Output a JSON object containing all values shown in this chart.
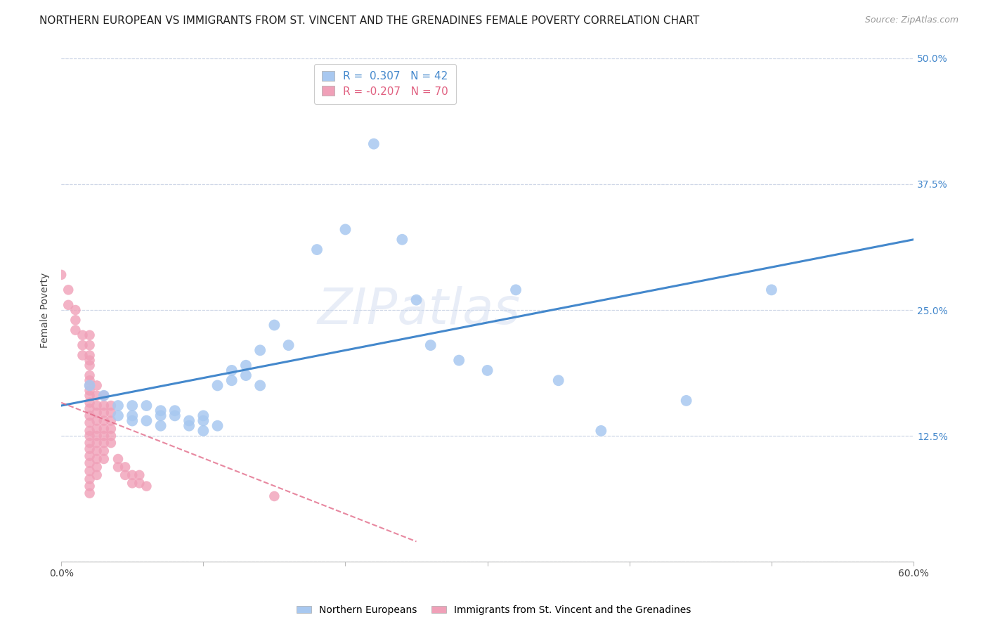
{
  "title": "NORTHERN EUROPEAN VS IMMIGRANTS FROM ST. VINCENT AND THE GRENADINES FEMALE POVERTY CORRELATION CHART",
  "source": "Source: ZipAtlas.com",
  "ylabel": "Female Poverty",
  "xlim": [
    0.0,
    0.6
  ],
  "ylim": [
    0.0,
    0.5
  ],
  "xticks": [
    0.0,
    0.1,
    0.2,
    0.3,
    0.4,
    0.5,
    0.6
  ],
  "xticklabels": [
    "0.0%",
    "",
    "",
    "",
    "",
    "",
    "60.0%"
  ],
  "yticks": [
    0.0,
    0.125,
    0.25,
    0.375,
    0.5
  ],
  "yticklabels": [
    "",
    "12.5%",
    "25.0%",
    "37.5%",
    "50.0%"
  ],
  "blue_R": 0.307,
  "blue_N": 42,
  "pink_R": -0.207,
  "pink_N": 70,
  "blue_color": "#a8c8f0",
  "pink_color": "#f0a0b8",
  "blue_line_color": "#4488cc",
  "pink_line_color": "#e06080",
  "background_color": "#ffffff",
  "grid_color": "#d0d8e8",
  "watermark": "ZIPatlas",
  "blue_points": [
    [
      0.02,
      0.175
    ],
    [
      0.03,
      0.165
    ],
    [
      0.04,
      0.155
    ],
    [
      0.04,
      0.145
    ],
    [
      0.05,
      0.155
    ],
    [
      0.05,
      0.145
    ],
    [
      0.05,
      0.14
    ],
    [
      0.06,
      0.155
    ],
    [
      0.06,
      0.14
    ],
    [
      0.07,
      0.15
    ],
    [
      0.07,
      0.145
    ],
    [
      0.07,
      0.135
    ],
    [
      0.08,
      0.15
    ],
    [
      0.08,
      0.145
    ],
    [
      0.09,
      0.14
    ],
    [
      0.09,
      0.135
    ],
    [
      0.1,
      0.145
    ],
    [
      0.1,
      0.14
    ],
    [
      0.1,
      0.13
    ],
    [
      0.11,
      0.175
    ],
    [
      0.11,
      0.135
    ],
    [
      0.12,
      0.19
    ],
    [
      0.12,
      0.18
    ],
    [
      0.13,
      0.195
    ],
    [
      0.13,
      0.185
    ],
    [
      0.14,
      0.21
    ],
    [
      0.14,
      0.175
    ],
    [
      0.15,
      0.235
    ],
    [
      0.16,
      0.215
    ],
    [
      0.18,
      0.31
    ],
    [
      0.2,
      0.33
    ],
    [
      0.22,
      0.415
    ],
    [
      0.24,
      0.32
    ],
    [
      0.25,
      0.26
    ],
    [
      0.26,
      0.215
    ],
    [
      0.28,
      0.2
    ],
    [
      0.3,
      0.19
    ],
    [
      0.32,
      0.27
    ],
    [
      0.35,
      0.18
    ],
    [
      0.38,
      0.13
    ],
    [
      0.44,
      0.16
    ],
    [
      0.5,
      0.27
    ]
  ],
  "pink_points": [
    [
      0.0,
      0.285
    ],
    [
      0.005,
      0.27
    ],
    [
      0.005,
      0.255
    ],
    [
      0.01,
      0.25
    ],
    [
      0.01,
      0.24
    ],
    [
      0.01,
      0.23
    ],
    [
      0.015,
      0.225
    ],
    [
      0.015,
      0.215
    ],
    [
      0.015,
      0.205
    ],
    [
      0.02,
      0.225
    ],
    [
      0.02,
      0.215
    ],
    [
      0.02,
      0.205
    ],
    [
      0.02,
      0.2
    ],
    [
      0.02,
      0.195
    ],
    [
      0.02,
      0.185
    ],
    [
      0.02,
      0.18
    ],
    [
      0.02,
      0.175
    ],
    [
      0.02,
      0.17
    ],
    [
      0.02,
      0.165
    ],
    [
      0.02,
      0.158
    ],
    [
      0.02,
      0.152
    ],
    [
      0.02,
      0.145
    ],
    [
      0.02,
      0.138
    ],
    [
      0.02,
      0.13
    ],
    [
      0.02,
      0.125
    ],
    [
      0.02,
      0.118
    ],
    [
      0.02,
      0.112
    ],
    [
      0.02,
      0.105
    ],
    [
      0.02,
      0.098
    ],
    [
      0.02,
      0.09
    ],
    [
      0.02,
      0.082
    ],
    [
      0.02,
      0.075
    ],
    [
      0.02,
      0.068
    ],
    [
      0.025,
      0.175
    ],
    [
      0.025,
      0.165
    ],
    [
      0.025,
      0.155
    ],
    [
      0.025,
      0.148
    ],
    [
      0.025,
      0.14
    ],
    [
      0.025,
      0.132
    ],
    [
      0.025,
      0.125
    ],
    [
      0.025,
      0.118
    ],
    [
      0.025,
      0.11
    ],
    [
      0.025,
      0.102
    ],
    [
      0.025,
      0.094
    ],
    [
      0.025,
      0.086
    ],
    [
      0.03,
      0.165
    ],
    [
      0.03,
      0.155
    ],
    [
      0.03,
      0.148
    ],
    [
      0.03,
      0.14
    ],
    [
      0.03,
      0.132
    ],
    [
      0.03,
      0.125
    ],
    [
      0.03,
      0.118
    ],
    [
      0.03,
      0.11
    ],
    [
      0.03,
      0.102
    ],
    [
      0.035,
      0.155
    ],
    [
      0.035,
      0.148
    ],
    [
      0.035,
      0.14
    ],
    [
      0.035,
      0.132
    ],
    [
      0.035,
      0.125
    ],
    [
      0.035,
      0.118
    ],
    [
      0.04,
      0.102
    ],
    [
      0.04,
      0.094
    ],
    [
      0.045,
      0.094
    ],
    [
      0.045,
      0.086
    ],
    [
      0.05,
      0.086
    ],
    [
      0.05,
      0.078
    ],
    [
      0.055,
      0.086
    ],
    [
      0.055,
      0.078
    ],
    [
      0.06,
      0.075
    ],
    [
      0.15,
      0.065
    ]
  ],
  "title_fontsize": 11,
  "axis_label_fontsize": 10,
  "tick_fontsize": 10,
  "legend_fontsize": 11,
  "source_fontsize": 9
}
